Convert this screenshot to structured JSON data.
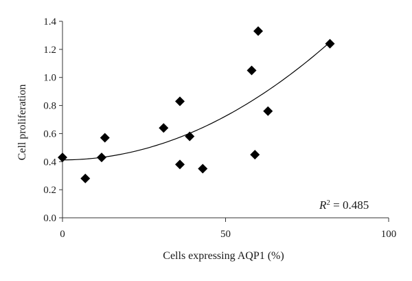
{
  "chart_data": {
    "type": "scatter",
    "title": "",
    "xlabel": "Cells expressing AQP1 (%)",
    "ylabel": "Cell proliferation",
    "xlim": [
      0,
      100
    ],
    "ylim": [
      0,
      1.4
    ],
    "xticks": [
      0,
      50,
      100
    ],
    "xtick_labels": [
      "0",
      "50",
      "100"
    ],
    "yticks": [
      0,
      0.2,
      0.4,
      0.6,
      0.8,
      1.0,
      1.2,
      1.4
    ],
    "ytick_labels": [
      "0.0",
      "0.2",
      "0.4",
      "0.6",
      "0.8",
      "1.0",
      "1.2",
      "1.4"
    ],
    "grid": false,
    "marker": "diamond",
    "marker_color": "#000000",
    "trendline": {
      "type": "polynomial-2",
      "color": "#000000"
    },
    "annotation": {
      "r_label": "R",
      "r_exponent": "2",
      "r_rest": " = 0.485"
    },
    "points": [
      {
        "x": 0,
        "y": 0.43
      },
      {
        "x": 7,
        "y": 0.28
      },
      {
        "x": 12,
        "y": 0.43
      },
      {
        "x": 13,
        "y": 0.57
      },
      {
        "x": 31,
        "y": 0.64
      },
      {
        "x": 36,
        "y": 0.83
      },
      {
        "x": 36,
        "y": 0.38
      },
      {
        "x": 39,
        "y": 0.58
      },
      {
        "x": 43,
        "y": 0.35
      },
      {
        "x": 58,
        "y": 1.05
      },
      {
        "x": 59,
        "y": 0.45
      },
      {
        "x": 60,
        "y": 1.33
      },
      {
        "x": 63,
        "y": 0.76
      },
      {
        "x": 82,
        "y": 1.24
      }
    ]
  }
}
